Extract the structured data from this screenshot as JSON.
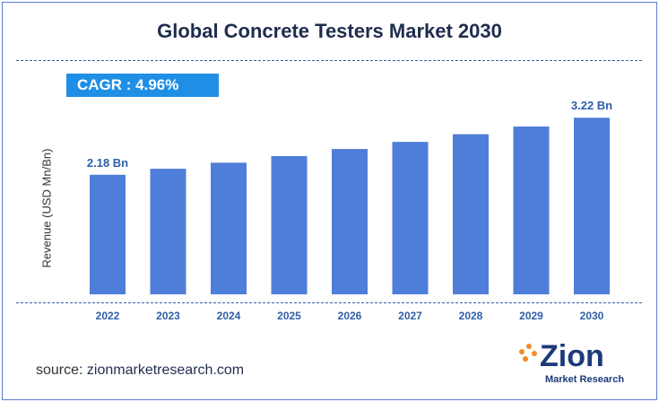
{
  "colors": {
    "bar": "#4f7ed8",
    "title": "#1f2d4d",
    "cagr_bg": "#1f8fe6",
    "label": "#2e5fa8",
    "logo_blue": "#1c3a7a",
    "logo_orange": "#f28c28"
  },
  "header": {
    "title": "Global Concrete Testers Market 2030"
  },
  "cagr": {
    "text": "CAGR :  4.96%"
  },
  "chart_data": {
    "type": "bar",
    "title": "Global Concrete Testers Market 2030",
    "ylabel": "Revenue (USD Mn/Bn)",
    "xlabel": "",
    "categories": [
      "2022",
      "2023",
      "2024",
      "2025",
      "2026",
      "2027",
      "2028",
      "2029",
      "2030"
    ],
    "values": [
      2.18,
      2.29,
      2.4,
      2.52,
      2.65,
      2.78,
      2.92,
      3.06,
      3.22
    ],
    "data_labels": [
      {
        "index": 0,
        "text": "2.18 Bn"
      },
      {
        "index": 8,
        "text": "3.22 Bn"
      }
    ],
    "ylim": [
      0,
      3.6
    ],
    "grid": false
  },
  "footer": {
    "source_prefix": "source: ",
    "source_url": "zionmarketresearch.com"
  },
  "logo": {
    "word": "Zion",
    "sub": "Market Research"
  }
}
